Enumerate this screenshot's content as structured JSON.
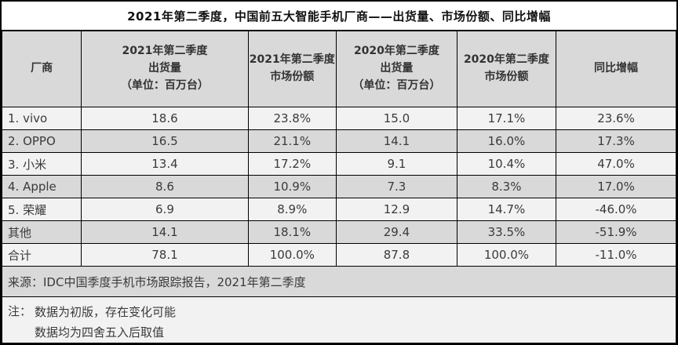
{
  "title": "2021年第二季度，中国前五大智能手机厂商——出货量、市场份额、同比增幅",
  "table": {
    "headers": [
      {
        "lines": [
          "厂商"
        ]
      },
      {
        "lines": [
          "2021年第二季度",
          "出货量",
          "（单位：百万台）"
        ]
      },
      {
        "lines": [
          "2021年第二季度",
          "市场份额"
        ]
      },
      {
        "lines": [
          "2020年第二季度",
          "出货量",
          "（单位：百万台）"
        ]
      },
      {
        "lines": [
          "2020年第二季度",
          "市场份额"
        ]
      },
      {
        "lines": [
          "同比增幅"
        ]
      }
    ],
    "rows": [
      {
        "cells": [
          "1. vivo",
          "18.6",
          "23.8%",
          "15.0",
          "17.1%",
          "23.6%"
        ]
      },
      {
        "cells": [
          "2. OPPO",
          "16.5",
          "21.1%",
          "14.1",
          "16.0%",
          "17.3%"
        ]
      },
      {
        "cells": [
          "3. 小米",
          "13.4",
          "17.2%",
          "9.1",
          "10.4%",
          "47.0%"
        ]
      },
      {
        "cells": [
          "4. Apple",
          "8.6",
          "10.9%",
          "7.3",
          "8.3%",
          "17.0%"
        ]
      },
      {
        "cells": [
          "5. 荣耀",
          "6.9",
          "8.9%",
          "12.9",
          "14.7%",
          "-46.0%"
        ]
      },
      {
        "cells": [
          "其他",
          "14.1",
          "18.1%",
          "29.4",
          "33.5%",
          "-51.9%"
        ]
      },
      {
        "cells": [
          "合计",
          "78.1",
          "100.0%",
          "87.8",
          "100.0%",
          "-11.0%"
        ]
      }
    ]
  },
  "source": "来源：IDC中国季度手机市场跟踪报告，2021年第二季度",
  "notes": {
    "label": "注：",
    "lines": [
      "数据为初版，存在变化可能",
      "数据均为四舍五入后取值"
    ]
  },
  "colors": {
    "header_bg": "#d9d9d9",
    "row_bg": "#f2f2f2",
    "row_alt_bg": "#d9d9d9",
    "source_bg": "#d9d9d9",
    "notes_bg": "#f2f2f2",
    "border": "#000000"
  }
}
